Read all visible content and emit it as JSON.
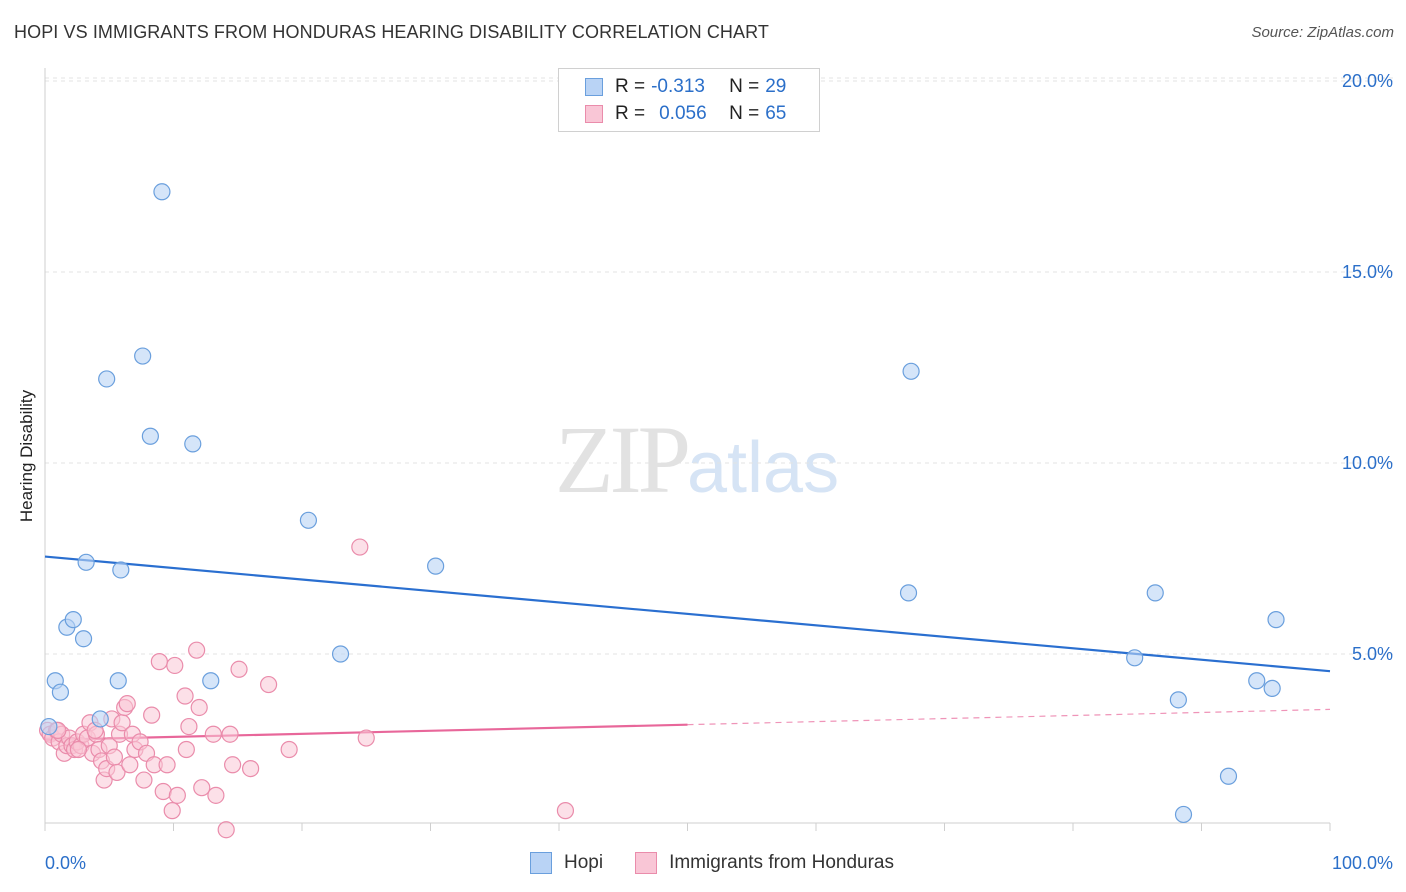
{
  "header": {
    "title": "HOPI VS IMMIGRANTS FROM HONDURAS HEARING DISABILITY CORRELATION CHART",
    "source": "Source: ZipAtlas.com"
  },
  "watermark": {
    "zip": "ZIP",
    "atlas": "atlas"
  },
  "legend": {
    "rows": [
      {
        "name": "Hopi",
        "r_label": "R =",
        "r_value": "-0.313",
        "n_label": "N =",
        "n_value": "29"
      },
      {
        "name": "Immigrants from Honduras",
        "r_label": "R =",
        "r_value": "0.056",
        "n_label": "N =",
        "n_value": "65"
      }
    ]
  },
  "colors": {
    "hopi_fill": "#b9d3f5",
    "hopi_stroke": "#6a9fdd",
    "hopi_line": "#2a6fd0",
    "honduras_fill": "#f9c6d6",
    "honduras_stroke": "#ea8cab",
    "honduras_line": "#e8679a",
    "axis_text": "#2b6fc9",
    "grid": "#e3e3e3"
  },
  "chart_data": {
    "type": "scatter",
    "title": "HOPI VS IMMIGRANTS FROM HONDURAS HEARING DISABILITY CORRELATION CHART",
    "xlabel": "",
    "ylabel": "Hearing Disability",
    "xlim": [
      0,
      100
    ],
    "ylim": [
      0,
      20.5
    ],
    "x_tick_labels": [
      "0.0%",
      "100.0%"
    ],
    "y_ticks": [
      5,
      10,
      15,
      20
    ],
    "y_tick_labels": [
      "5.0%",
      "10.0%",
      "15.0%",
      "20.0%"
    ],
    "grid": true,
    "legend_position": "bottom",
    "series": [
      {
        "name": "Hopi",
        "points": [
          [
            0.3,
            3.1
          ],
          [
            0.8,
            4.3
          ],
          [
            1.2,
            4.0
          ],
          [
            1.7,
            5.7
          ],
          [
            2.2,
            5.9
          ],
          [
            3.0,
            5.4
          ],
          [
            3.2,
            7.4
          ],
          [
            4.3,
            3.3
          ],
          [
            4.8,
            12.2
          ],
          [
            5.7,
            4.3
          ],
          [
            5.9,
            7.2
          ],
          [
            7.6,
            12.8
          ],
          [
            8.2,
            10.7
          ],
          [
            9.1,
            17.1
          ],
          [
            11.5,
            10.5
          ],
          [
            12.9,
            4.3
          ],
          [
            20.5,
            8.5
          ],
          [
            23.0,
            5.0
          ],
          [
            30.4,
            7.3
          ],
          [
            67.2,
            6.6
          ],
          [
            67.4,
            12.4
          ],
          [
            84.8,
            4.9
          ],
          [
            86.4,
            6.6
          ],
          [
            88.2,
            3.8
          ],
          [
            88.6,
            0.8
          ],
          [
            92.1,
            1.8
          ],
          [
            94.3,
            4.3
          ],
          [
            95.5,
            4.1
          ],
          [
            95.8,
            5.9
          ]
        ],
        "trend": {
          "x": [
            0,
            100
          ],
          "y": [
            7.55,
            4.55
          ]
        }
      },
      {
        "name": "Immigrants from Honduras",
        "points": [
          [
            0.2,
            3.0
          ],
          [
            0.4,
            2.9
          ],
          [
            0.6,
            2.8
          ],
          [
            0.9,
            3.0
          ],
          [
            1.1,
            2.7
          ],
          [
            1.3,
            2.9
          ],
          [
            1.5,
            2.4
          ],
          [
            1.7,
            2.6
          ],
          [
            1.9,
            2.8
          ],
          [
            2.1,
            2.6
          ],
          [
            2.3,
            2.5
          ],
          [
            2.5,
            2.7
          ],
          [
            2.8,
            2.6
          ],
          [
            3.0,
            2.9
          ],
          [
            3.3,
            2.8
          ],
          [
            3.5,
            3.2
          ],
          [
            3.7,
            2.4
          ],
          [
            4.0,
            2.9
          ],
          [
            4.2,
            2.5
          ],
          [
            4.4,
            2.2
          ],
          [
            4.6,
            1.7
          ],
          [
            4.8,
            2.0
          ],
          [
            5.0,
            2.6
          ],
          [
            5.2,
            3.3
          ],
          [
            5.4,
            2.3
          ],
          [
            5.6,
            1.9
          ],
          [
            5.8,
            2.9
          ],
          [
            6.0,
            3.2
          ],
          [
            6.2,
            3.6
          ],
          [
            6.4,
            3.7
          ],
          [
            6.6,
            2.1
          ],
          [
            6.8,
            2.9
          ],
          [
            7.0,
            2.5
          ],
          [
            7.4,
            2.7
          ],
          [
            7.7,
            1.7
          ],
          [
            7.9,
            2.4
          ],
          [
            8.3,
            3.4
          ],
          [
            8.5,
            2.1
          ],
          [
            8.9,
            4.8
          ],
          [
            9.2,
            1.4
          ],
          [
            9.5,
            2.1
          ],
          [
            9.9,
            0.9
          ],
          [
            10.1,
            4.7
          ],
          [
            10.3,
            1.3
          ],
          [
            10.9,
            3.9
          ],
          [
            11.0,
            2.5
          ],
          [
            11.2,
            3.1
          ],
          [
            11.8,
            5.1
          ],
          [
            12.0,
            3.6
          ],
          [
            12.2,
            1.5
          ],
          [
            13.1,
            2.9
          ],
          [
            13.3,
            1.3
          ],
          [
            14.1,
            0.4
          ],
          [
            14.4,
            2.9
          ],
          [
            14.6,
            2.1
          ],
          [
            15.1,
            4.6
          ],
          [
            16.0,
            2.0
          ],
          [
            17.4,
            4.2
          ],
          [
            19.0,
            2.5
          ],
          [
            24.5,
            7.8
          ],
          [
            25.0,
            2.8
          ],
          [
            40.5,
            0.9
          ],
          [
            2.6,
            2.5
          ],
          [
            3.9,
            3.0
          ],
          [
            1.0,
            3.0
          ]
        ],
        "trend": {
          "x": [
            0,
            50
          ],
          "y": [
            2.75,
            3.15
          ]
        },
        "trend_extension": {
          "x": [
            50,
            100
          ],
          "y": [
            3.15,
            3.55
          ]
        }
      }
    ]
  }
}
